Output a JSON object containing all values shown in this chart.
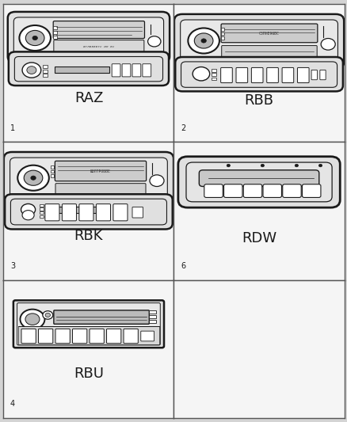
{
  "background_color": "#d4d4d4",
  "cell_bg": "#f5f5f5",
  "border_color": "#555555",
  "figsize": [
    4.39,
    5.33
  ],
  "dpi": 100,
  "cells": [
    {
      "row": 0,
      "col": 0,
      "num": "1",
      "label": "RAZ",
      "type": "raz"
    },
    {
      "row": 0,
      "col": 1,
      "num": "2",
      "label": "RBB",
      "type": "rbb"
    },
    {
      "row": 1,
      "col": 0,
      "num": "3",
      "label": "RBK",
      "type": "rbk"
    },
    {
      "row": 1,
      "col": 1,
      "num": "6",
      "label": "RDW",
      "type": "rdw"
    },
    {
      "row": 2,
      "col": 0,
      "num": "4",
      "label": "RBU",
      "type": "rbu"
    },
    {
      "row": 2,
      "col": 1,
      "num": "",
      "label": "",
      "type": "empty"
    }
  ],
  "num_rows": 3,
  "num_cols": 2,
  "label_fontsize": 13,
  "num_fontsize": 7,
  "line_color": "#1a1a1a",
  "fill_color": "#ffffff",
  "radio_fill": "#e0e0e0",
  "dark_fill": "#444444",
  "mid_fill": "#b8b8b8"
}
